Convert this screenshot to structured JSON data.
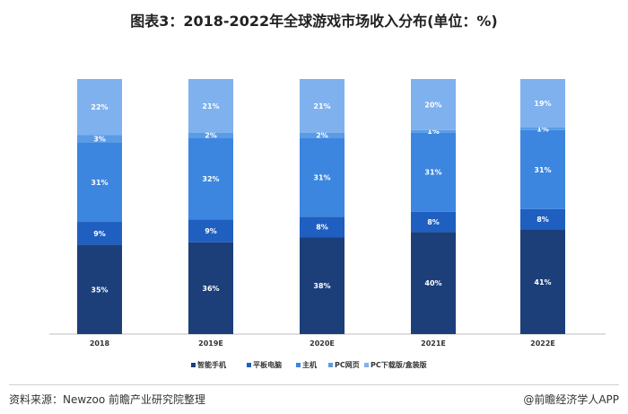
{
  "title": "图表3：2018-2022年全球游戏市场收入分布(单位：%)",
  "chart_data": {
    "type": "bar",
    "stacked": true,
    "categories": [
      "2018",
      "2019E",
      "2020E",
      "2021E",
      "2022E"
    ],
    "series": [
      {
        "name": "智能手机",
        "color": "#1c3f7a",
        "values": [
          35,
          36,
          38,
          40,
          41
        ],
        "labels": [
          "35%",
          "36%",
          "38%",
          "40%",
          "41%"
        ]
      },
      {
        "name": "平板电脑",
        "color": "#1f5fc0",
        "values": [
          9,
          9,
          8,
          8,
          8
        ],
        "labels": [
          "9%",
          "9%",
          "8%",
          "8%",
          "8%"
        ]
      },
      {
        "name": "主机",
        "color": "#3c86e0",
        "values": [
          31,
          32,
          31,
          31,
          31
        ],
        "labels": [
          "31%",
          "32%",
          "31%",
          "31%",
          "31%"
        ]
      },
      {
        "name": "PC网页",
        "color": "#5a9be6",
        "values": [
          3,
          2,
          2,
          1,
          1
        ],
        "labels": [
          "3%",
          "2%",
          "2%",
          "1%",
          "1%"
        ]
      },
      {
        "name": "PC下载版/盒装版",
        "color": "#7fb1ee",
        "values": [
          22,
          21,
          21,
          20,
          19
        ],
        "labels": [
          "22%",
          "21%",
          "21%",
          "20%",
          "19%"
        ]
      }
    ],
    "ylim": [
      0,
      100
    ],
    "legend_position": "bottom",
    "grid": false
  },
  "footer": {
    "source": "资料来源：Newzoo 前瞻产业研究院整理",
    "brand": "@前瞻经济学人APP"
  }
}
